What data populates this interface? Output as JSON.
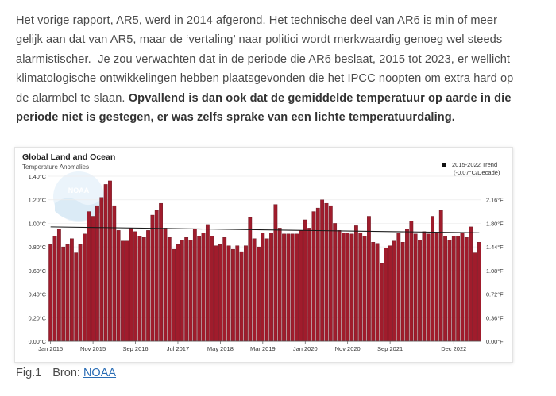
{
  "article": {
    "normal_text": "Het vorige rapport, AR5, werd in 2014 afgerond. Het technische deel van AR6 is min of meer gelijk aan dat van AR5, maar de ‘vertaling’ naar politici wordt merkwaardig genoeg wel steeds alarmistischer.  Je zou verwachten dat in de periode die AR6 beslaat, 2015 tot 2023, er wellicht klimatologische ontwikkelingen hebben plaatsgevonden die het IPCC noopten om extra hard op de alarmbel te slaan.",
    "bold_text": "Opvallend is dan ook dat de gemiddelde temperatuur op aarde in die periode niet is gestegen, er was zelfs sprake van een lichte temperatuurdaling."
  },
  "caption": {
    "label": "Fig.1",
    "source_prefix": "Bron:",
    "source_link": "NOAA"
  },
  "colors": {
    "bar": "#a01c2c",
    "bar_edge": "#5e0f19",
    "trend": "#1a1a1a"
  },
  "chart_data": {
    "type": "bar",
    "title": "Global Land and Ocean",
    "subtitle": "Temperature Anomalies",
    "watermark": "NOAA",
    "legend": {
      "label_line1": "2015-2022 Trend",
      "label_line2": "(-0.07°C/Decade)",
      "placement": "top-right"
    },
    "ylim": [
      0,
      1.4
    ],
    "yticks_left": [
      "0.00°C",
      "0.20°C",
      "0.40°C",
      "0.60°C",
      "0.80°C",
      "1.00°C",
      "1.20°C",
      "1.40°C"
    ],
    "yticks_right": [
      "0.00°F",
      "0.36°F",
      "0.72°F",
      "1.08°F",
      "1.44°F",
      "1.80°F",
      "2.16°F"
    ],
    "xticks": [
      {
        "label": "Jan 2015",
        "index": 0
      },
      {
        "label": "Nov 2015",
        "index": 10
      },
      {
        "label": "Sep 2016",
        "index": 20
      },
      {
        "label": "Jul 2017",
        "index": 30
      },
      {
        "label": "May 2018",
        "index": 40
      },
      {
        "label": "Mar 2019",
        "index": 50
      },
      {
        "label": "Jan 2020",
        "index": 60
      },
      {
        "label": "Nov 2020",
        "index": 70
      },
      {
        "label": "Sep 2021",
        "index": 80
      },
      {
        "label": "Dec 2022",
        "index": 95
      }
    ],
    "trend": {
      "start": 0.97,
      "end": 0.92
    },
    "values": [
      0.82,
      0.89,
      0.95,
      0.8,
      0.82,
      0.87,
      0.75,
      0.82,
      0.91,
      1.1,
      1.06,
      1.15,
      1.22,
      1.33,
      1.36,
      1.15,
      0.94,
      0.85,
      0.85,
      0.96,
      0.93,
      0.89,
      0.88,
      0.94,
      1.07,
      1.11,
      1.17,
      0.96,
      0.88,
      0.78,
      0.82,
      0.86,
      0.88,
      0.86,
      0.95,
      0.89,
      0.92,
      0.99,
      0.89,
      0.81,
      0.82,
      0.88,
      0.81,
      0.78,
      0.81,
      0.76,
      0.81,
      1.05,
      0.87,
      0.8,
      0.92,
      0.87,
      0.92,
      1.16,
      0.96,
      0.91,
      0.91,
      0.91,
      0.91,
      0.94,
      1.03,
      0.96,
      1.1,
      1.13,
      1.2,
      1.17,
      1.15,
      1.0,
      0.94,
      0.92,
      0.92,
      0.91,
      0.98,
      0.92,
      0.89,
      1.06,
      0.84,
      0.83,
      0.66,
      0.79,
      0.81,
      0.85,
      0.92,
      0.84,
      0.95,
      1.02,
      0.91,
      0.86,
      0.93,
      0.91,
      1.06,
      0.92,
      1.11,
      0.89,
      0.86,
      0.89,
      0.89,
      0.92,
      0.88,
      0.97,
      0.75,
      0.84
    ]
  }
}
